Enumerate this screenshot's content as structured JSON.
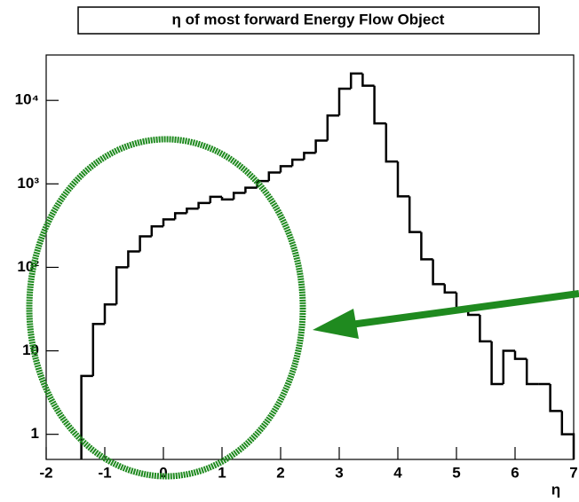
{
  "chart_data": {
    "type": "histogram",
    "title": "η of most forward Energy Flow Object",
    "x_label": "η",
    "bins": [
      -1.4,
      -1.2,
      -1.0,
      -0.8,
      -0.6,
      -0.4,
      -0.2,
      0,
      0.2,
      0.4,
      0.6,
      0.8,
      1.0,
      1.2,
      1.4,
      1.6,
      1.8,
      2.0,
      2.2,
      2.4,
      2.6,
      2.8,
      3.0,
      3.2,
      3.4,
      3.6,
      3.8,
      4.0,
      4.2,
      4.4,
      4.6,
      4.8,
      5.0,
      5.2,
      5.4,
      5.6,
      5.8,
      6.0,
      6.2,
      6.4,
      6.6,
      6.8,
      7.0
    ],
    "values": [
      5,
      21,
      36,
      100,
      155,
      235,
      310,
      375,
      445,
      505,
      590,
      700,
      650,
      780,
      900,
      1080,
      1370,
      1630,
      1950,
      2350,
      3300,
      6600,
      13800,
      21000,
      15000,
      5300,
      1850,
      710,
      265,
      125,
      63,
      50,
      32,
      27,
      13,
      4,
      10,
      8,
      4,
      4,
      1.9,
      1
    ],
    "color": "#000000",
    "log_y": true,
    "xlim": [
      -2,
      7
    ],
    "xticks": [
      -2,
      -1,
      0,
      1,
      2,
      3,
      4,
      5,
      6,
      7
    ],
    "ylim": [
      0.5,
      35000
    ],
    "yticks": [
      1,
      10,
      {
        "value": 100,
        "label": "10²"
      },
      {
        "value": 1000,
        "label": "10³"
      },
      {
        "value": 10000,
        "label": "10⁴"
      }
    ]
  }
}
